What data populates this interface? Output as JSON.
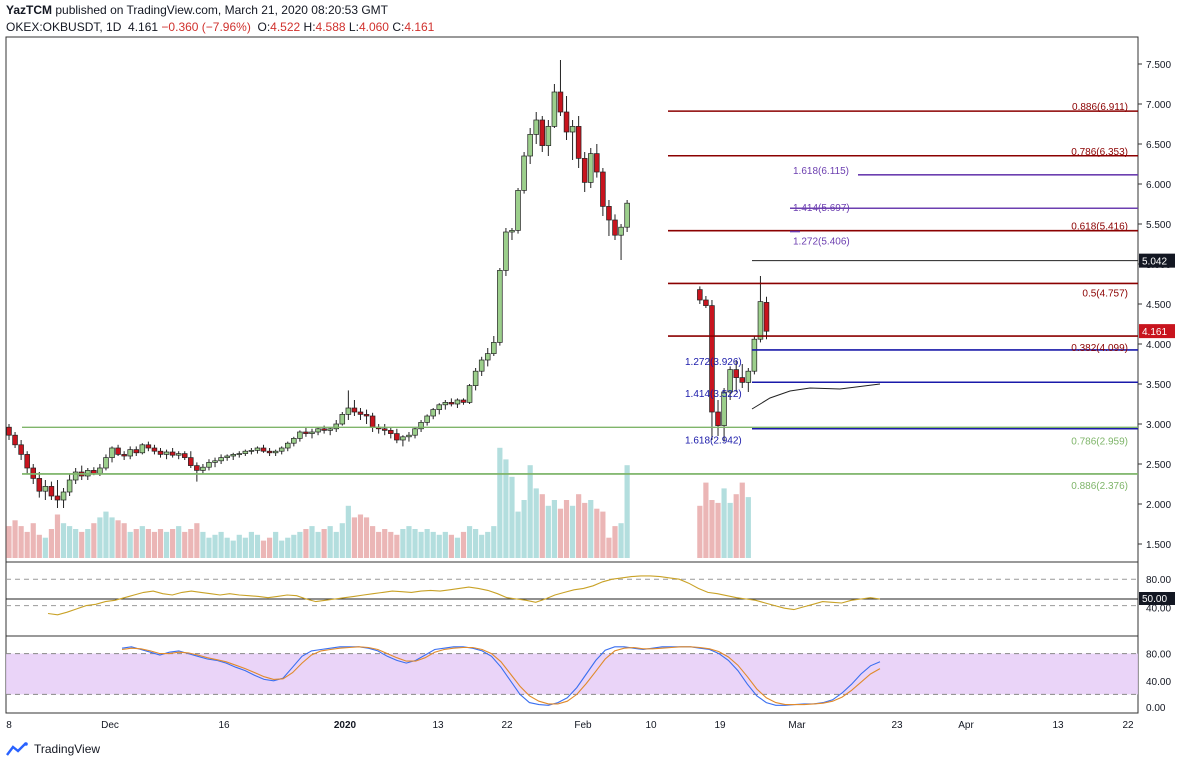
{
  "header": {
    "author": "YazTCM",
    "published": "published on TradingView.com, March 21, 2020 08:20:53 GMT",
    "symbol": "OKEX:OKBUSDT, 1D",
    "last": "4.161",
    "change": "−0.360 (−7.96%)",
    "o_label": "O:",
    "o_val": "4.522",
    "h_label": "H:",
    "h_val": "4.588",
    "l_label": "L:",
    "l_val": "4.060",
    "c_label": "C:",
    "c_val": "4.161"
  },
  "brand": "TradingView",
  "colors": {
    "up": "#9ccf8c",
    "down": "#c8141e",
    "fib_red": "#8b0000",
    "fib_blue": "#1a1aaa",
    "fib_purple": "#6c3fb0",
    "fib_green": "#7fb56a",
    "rsi": "#c9a227",
    "stoch_k": "#3a6ff0",
    "stoch_d": "#e08a2c",
    "stoch_band": "#e6ccf7"
  },
  "chart_data": [
    {
      "type": "candlestick",
      "title": "OKB/USDT daily",
      "ylim": [
        1.3,
        7.8
      ],
      "y_ticks": [
        "7.500",
        "7.000",
        "6.500",
        "6.000",
        "5.500",
        "5.000",
        "4.500",
        "4.000",
        "3.500",
        "3.000",
        "2.500",
        "2.000",
        "1.500"
      ],
      "y_tick_values": [
        7.5,
        7.0,
        6.5,
        6.0,
        5.5,
        5.0,
        4.5,
        4.0,
        3.5,
        3.0,
        2.5,
        2.0,
        1.5
      ],
      "x_labels": [
        "8",
        "Dec",
        "16",
        "2020",
        "13",
        "22",
        "Feb",
        "10",
        "19",
        "Mar",
        "23",
        "Apr",
        "13",
        "22"
      ],
      "price_label": "4.161",
      "ref_label": "5.042",
      "ohlc": [
        [
          2.96,
          3.0,
          2.8,
          2.86
        ],
        [
          2.86,
          2.9,
          2.7,
          2.74
        ],
        [
          2.74,
          2.8,
          2.55,
          2.62
        ],
        [
          2.62,
          2.66,
          2.38,
          2.45
        ],
        [
          2.45,
          2.5,
          2.25,
          2.32
        ],
        [
          2.32,
          2.4,
          2.08,
          2.16
        ],
        [
          2.16,
          2.3,
          2.05,
          2.22
        ],
        [
          2.22,
          2.28,
          2.05,
          2.1
        ],
        [
          2.1,
          2.3,
          1.95,
          2.05
        ],
        [
          2.05,
          2.2,
          1.95,
          2.15
        ],
        [
          2.15,
          2.38,
          2.1,
          2.3
        ],
        [
          2.3,
          2.45,
          2.25,
          2.4
        ],
        [
          2.4,
          2.48,
          2.3,
          2.35
        ],
        [
          2.35,
          2.45,
          2.3,
          2.42
        ],
        [
          2.42,
          2.46,
          2.36,
          2.38
        ],
        [
          2.38,
          2.5,
          2.35,
          2.45
        ],
        [
          2.45,
          2.62,
          2.42,
          2.58
        ],
        [
          2.58,
          2.72,
          2.52,
          2.7
        ],
        [
          2.7,
          2.74,
          2.6,
          2.62
        ],
        [
          2.62,
          2.66,
          2.55,
          2.6
        ],
        [
          2.6,
          2.72,
          2.56,
          2.68
        ],
        [
          2.68,
          2.72,
          2.6,
          2.64
        ],
        [
          2.64,
          2.76,
          2.62,
          2.74
        ],
        [
          2.74,
          2.78,
          2.66,
          2.7
        ],
        [
          2.7,
          2.74,
          2.62,
          2.66
        ],
        [
          2.66,
          2.7,
          2.58,
          2.62
        ],
        [
          2.62,
          2.68,
          2.56,
          2.65
        ],
        [
          2.65,
          2.7,
          2.58,
          2.61
        ],
        [
          2.61,
          2.66,
          2.56,
          2.63
        ],
        [
          2.63,
          2.66,
          2.55,
          2.58
        ],
        [
          2.58,
          2.66,
          2.45,
          2.48
        ],
        [
          2.48,
          2.52,
          2.28,
          2.42
        ],
        [
          2.42,
          2.5,
          2.38,
          2.46
        ],
        [
          2.46,
          2.56,
          2.42,
          2.52
        ],
        [
          2.52,
          2.58,
          2.46,
          2.54
        ],
        [
          2.54,
          2.62,
          2.5,
          2.58
        ],
        [
          2.58,
          2.62,
          2.54,
          2.6
        ],
        [
          2.6,
          2.64,
          2.55,
          2.62
        ],
        [
          2.62,
          2.66,
          2.58,
          2.63
        ],
        [
          2.63,
          2.68,
          2.6,
          2.66
        ],
        [
          2.66,
          2.7,
          2.62,
          2.67
        ],
        [
          2.67,
          2.72,
          2.63,
          2.7
        ],
        [
          2.7,
          2.74,
          2.64,
          2.66
        ],
        [
          2.66,
          2.7,
          2.6,
          2.64
        ],
        [
          2.64,
          2.68,
          2.6,
          2.66
        ],
        [
          2.66,
          2.72,
          2.62,
          2.7
        ],
        [
          2.7,
          2.78,
          2.66,
          2.76
        ],
        [
          2.76,
          2.84,
          2.72,
          2.82
        ],
        [
          2.82,
          2.92,
          2.78,
          2.9
        ],
        [
          2.9,
          2.96,
          2.84,
          2.88
        ],
        [
          2.88,
          2.94,
          2.82,
          2.9
        ],
        [
          2.9,
          2.96,
          2.86,
          2.94
        ],
        [
          2.94,
          2.98,
          2.88,
          2.92
        ],
        [
          2.92,
          2.96,
          2.86,
          2.94
        ],
        [
          2.94,
          3.05,
          2.9,
          3.0
        ],
        [
          3.0,
          3.15,
          2.98,
          3.12
        ],
        [
          3.12,
          3.42,
          3.05,
          3.2
        ],
        [
          3.2,
          3.3,
          3.1,
          3.15
        ],
        [
          3.15,
          3.2,
          3.05,
          3.12
        ],
        [
          3.12,
          3.18,
          3.0,
          3.1
        ],
        [
          3.1,
          3.14,
          2.9,
          2.96
        ],
        [
          2.96,
          3.0,
          2.88,
          2.94
        ],
        [
          2.94,
          3.0,
          2.86,
          2.92
        ],
        [
          2.92,
          2.96,
          2.82,
          2.88
        ],
        [
          2.88,
          2.94,
          2.76,
          2.8
        ],
        [
          2.8,
          2.86,
          2.72,
          2.84
        ],
        [
          2.84,
          2.9,
          2.78,
          2.86
        ],
        [
          2.86,
          2.96,
          2.82,
          2.94
        ],
        [
          2.94,
          3.05,
          2.9,
          3.02
        ],
        [
          3.02,
          3.12,
          2.98,
          3.1
        ],
        [
          3.1,
          3.2,
          3.06,
          3.18
        ],
        [
          3.18,
          3.26,
          3.12,
          3.24
        ],
        [
          3.24,
          3.3,
          3.18,
          3.27
        ],
        [
          3.27,
          3.32,
          3.22,
          3.25
        ],
        [
          3.25,
          3.32,
          3.2,
          3.3
        ],
        [
          3.3,
          3.32,
          3.24,
          3.27
        ],
        [
          3.27,
          3.5,
          3.25,
          3.48
        ],
        [
          3.48,
          3.7,
          3.42,
          3.66
        ],
        [
          3.66,
          3.84,
          3.6,
          3.8
        ],
        [
          3.8,
          3.95,
          3.72,
          3.88
        ],
        [
          3.88,
          4.1,
          3.85,
          4.02
        ],
        [
          4.02,
          4.95,
          3.98,
          4.92
        ],
        [
          4.92,
          5.45,
          4.85,
          5.4
        ],
        [
          5.4,
          5.45,
          5.3,
          5.42
        ],
        [
          5.42,
          5.95,
          5.38,
          5.92
        ],
        [
          5.92,
          6.4,
          5.88,
          6.35
        ],
        [
          6.35,
          6.7,
          6.25,
          6.62
        ],
        [
          6.62,
          6.9,
          6.5,
          6.8
        ],
        [
          6.8,
          6.85,
          6.4,
          6.48
        ],
        [
          6.48,
          6.8,
          6.35,
          6.72
        ],
        [
          6.72,
          7.25,
          6.7,
          7.15
        ],
        [
          7.15,
          7.55,
          6.85,
          6.9
        ],
        [
          6.9,
          7.1,
          6.55,
          6.65
        ],
        [
          6.65,
          6.8,
          6.3,
          6.72
        ],
        [
          6.72,
          6.85,
          6.2,
          6.32
        ],
        [
          6.32,
          6.4,
          5.9,
          6.02
        ],
        [
          6.02,
          6.45,
          5.95,
          6.38
        ],
        [
          6.38,
          6.5,
          6.08,
          6.15
        ],
        [
          6.15,
          6.2,
          5.6,
          5.72
        ],
        [
          5.72,
          5.8,
          5.35,
          5.55
        ],
        [
          5.55,
          5.62,
          5.3,
          5.36
        ],
        [
          5.36,
          5.5,
          5.05,
          5.46
        ],
        [
          5.46,
          5.8,
          5.4,
          5.76
        ],
        [
          4.68,
          4.72,
          4.5,
          4.55
        ],
        [
          4.55,
          4.6,
          4.45,
          4.48
        ],
        [
          4.48,
          4.55,
          2.8,
          3.15
        ],
        [
          3.15,
          3.3,
          2.85,
          2.98
        ],
        [
          2.98,
          3.45,
          2.78,
          3.4
        ],
        [
          3.4,
          3.72,
          3.3,
          3.68
        ],
        [
          3.68,
          3.8,
          3.4,
          3.58
        ],
        [
          3.58,
          3.75,
          3.45,
          3.52
        ],
        [
          3.52,
          3.7,
          3.4,
          3.66
        ],
        [
          3.66,
          4.1,
          3.62,
          4.06
        ],
        [
          4.06,
          4.85,
          4.02,
          4.53
        ],
        [
          4.52,
          4.59,
          4.06,
          4.16
        ]
      ],
      "volume_rel": [
        0.55,
        0.65,
        0.55,
        0.45,
        0.6,
        0.4,
        0.35,
        0.5,
        0.75,
        0.6,
        0.55,
        0.5,
        0.45,
        0.5,
        0.6,
        0.7,
        0.8,
        0.7,
        0.65,
        0.6,
        0.45,
        0.5,
        0.55,
        0.5,
        0.45,
        0.5,
        0.45,
        0.5,
        0.55,
        0.45,
        0.5,
        0.6,
        0.45,
        0.35,
        0.4,
        0.45,
        0.35,
        0.3,
        0.4,
        0.35,
        0.45,
        0.4,
        0.3,
        0.35,
        0.45,
        0.3,
        0.35,
        0.4,
        0.45,
        0.5,
        0.55,
        0.45,
        0.5,
        0.55,
        0.45,
        0.6,
        0.9,
        0.7,
        0.75,
        0.7,
        0.55,
        0.45,
        0.5,
        0.45,
        0.4,
        0.5,
        0.55,
        0.5,
        0.45,
        0.5,
        0.45,
        0.4,
        0.45,
        0.4,
        0.35,
        0.45,
        0.55,
        0.5,
        0.4,
        0.45,
        0.55,
        1.9,
        1.7,
        1.4,
        0.8,
        1.0,
        1.6,
        1.2,
        1.1,
        0.9,
        1.0,
        0.85,
        1.0,
        0.9,
        1.1,
        0.95,
        1.0,
        0.85,
        0.8,
        0.35,
        0.55,
        0.6,
        1.6,
        0.9,
        1.3,
        1.0,
        0.95,
        1.2,
        0.95,
        1.1,
        1.3,
        1.05
      ],
      "fib_levels": [
        {
          "label": "0.886(6.911)",
          "value": 6.911,
          "color": "#8b0000",
          "side": "right"
        },
        {
          "label": "0.786(6.353)",
          "value": 6.353,
          "color": "#8b0000",
          "side": "right"
        },
        {
          "label": "1.618(6.115)",
          "value": 6.115,
          "color": "#6c3fb0",
          "side": "left"
        },
        {
          "label": "1.414(5.697)",
          "value": 5.697,
          "color": "#6c3fb0",
          "side": "left"
        },
        {
          "label": "0.618(5.416)",
          "value": 5.416,
          "color": "#8b0000",
          "side": "right"
        },
        {
          "label": "1.272(5.406)",
          "value": 5.406,
          "color": "#6c3fb0",
          "side": "left"
        },
        {
          "label": "0.5(4.757)",
          "value": 4.757,
          "color": "#8b0000",
          "side": "right"
        },
        {
          "label": "0.382(4.099)",
          "value": 4.099,
          "color": "#8b0000",
          "side": "right"
        },
        {
          "label": "1.272(3.926)",
          "value": 3.926,
          "color": "#1a1aaa",
          "side": "left"
        },
        {
          "label": "1.414(3.522)",
          "value": 3.522,
          "color": "#1a1aaa",
          "side": "left"
        },
        {
          "label": "1.618(2.942)",
          "value": 2.942,
          "color": "#1a1aaa",
          "side": "left"
        },
        {
          "label": "0.786(2.959)",
          "value": 2.959,
          "color": "#7fb56a",
          "side": "right"
        },
        {
          "label": "0.886(2.376)",
          "value": 2.376,
          "color": "#7fb56a",
          "side": "right"
        }
      ]
    },
    {
      "type": "line",
      "title": "RSI",
      "ylim": [
        0,
        100
      ],
      "y_ticks": [
        "80.00",
        "50.00",
        "40.00"
      ],
      "value_label": "50.00",
      "values": [
        28,
        26,
        30,
        35,
        40,
        42,
        46,
        48,
        52,
        56,
        60,
        62,
        58,
        56,
        60,
        62,
        60,
        58,
        56,
        58,
        56,
        55,
        54,
        52,
        54,
        56,
        55,
        50,
        46,
        48,
        50,
        52,
        54,
        56,
        58,
        60,
        62,
        61,
        60,
        62,
        63,
        62,
        64,
        66,
        68,
        66,
        63,
        58,
        52,
        50,
        48,
        45,
        50,
        56,
        60,
        64,
        66,
        70,
        76,
        80,
        82,
        84,
        85,
        85,
        84,
        82,
        80,
        74,
        66,
        60,
        58,
        55,
        52,
        50,
        48,
        44,
        40,
        36,
        34,
        38,
        42,
        46,
        45,
        44,
        48,
        50,
        52,
        50
      ]
    },
    {
      "type": "line",
      "title": "Stochastic RSI",
      "ylim": [
        0,
        100
      ],
      "y_ticks": [
        "80.00",
        "40.00",
        "0.00"
      ],
      "series": [
        {
          "values": [
            88,
            90,
            86,
            82,
            78,
            82,
            84,
            80,
            76,
            72,
            70,
            66,
            60,
            55,
            48,
            42,
            40,
            44,
            60,
            76,
            84,
            86,
            88,
            90,
            90,
            90,
            88,
            84,
            76,
            70,
            66,
            70,
            78,
            86,
            88,
            90,
            90,
            88,
            84,
            76,
            60,
            40,
            20,
            8,
            5,
            4,
            8,
            15,
            30,
            50,
            70,
            85,
            90,
            90,
            88,
            86,
            88,
            90,
            90,
            90,
            90,
            88,
            86,
            80,
            70,
            55,
            35,
            18,
            8,
            4,
            4,
            5,
            6,
            6,
            8,
            12,
            22,
            35,
            50,
            62,
            68
          ]
        },
        {
          "values": [
            86,
            88,
            87,
            84,
            80,
            80,
            82,
            81,
            78,
            74,
            71,
            68,
            63,
            58,
            52,
            46,
            42,
            43,
            52,
            66,
            78,
            84,
            86,
            88,
            89,
            90,
            89,
            86,
            80,
            74,
            69,
            69,
            74,
            82,
            86,
            88,
            89,
            89,
            86,
            80,
            68,
            50,
            32,
            18,
            10,
            6,
            6,
            10,
            20,
            36,
            54,
            72,
            84,
            88,
            89,
            87,
            87,
            88,
            89,
            90,
            90,
            89,
            87,
            83,
            75,
            63,
            46,
            28,
            15,
            8,
            5,
            5,
            5,
            6,
            7,
            10,
            16,
            26,
            38,
            50,
            58
          ]
        }
      ]
    }
  ]
}
